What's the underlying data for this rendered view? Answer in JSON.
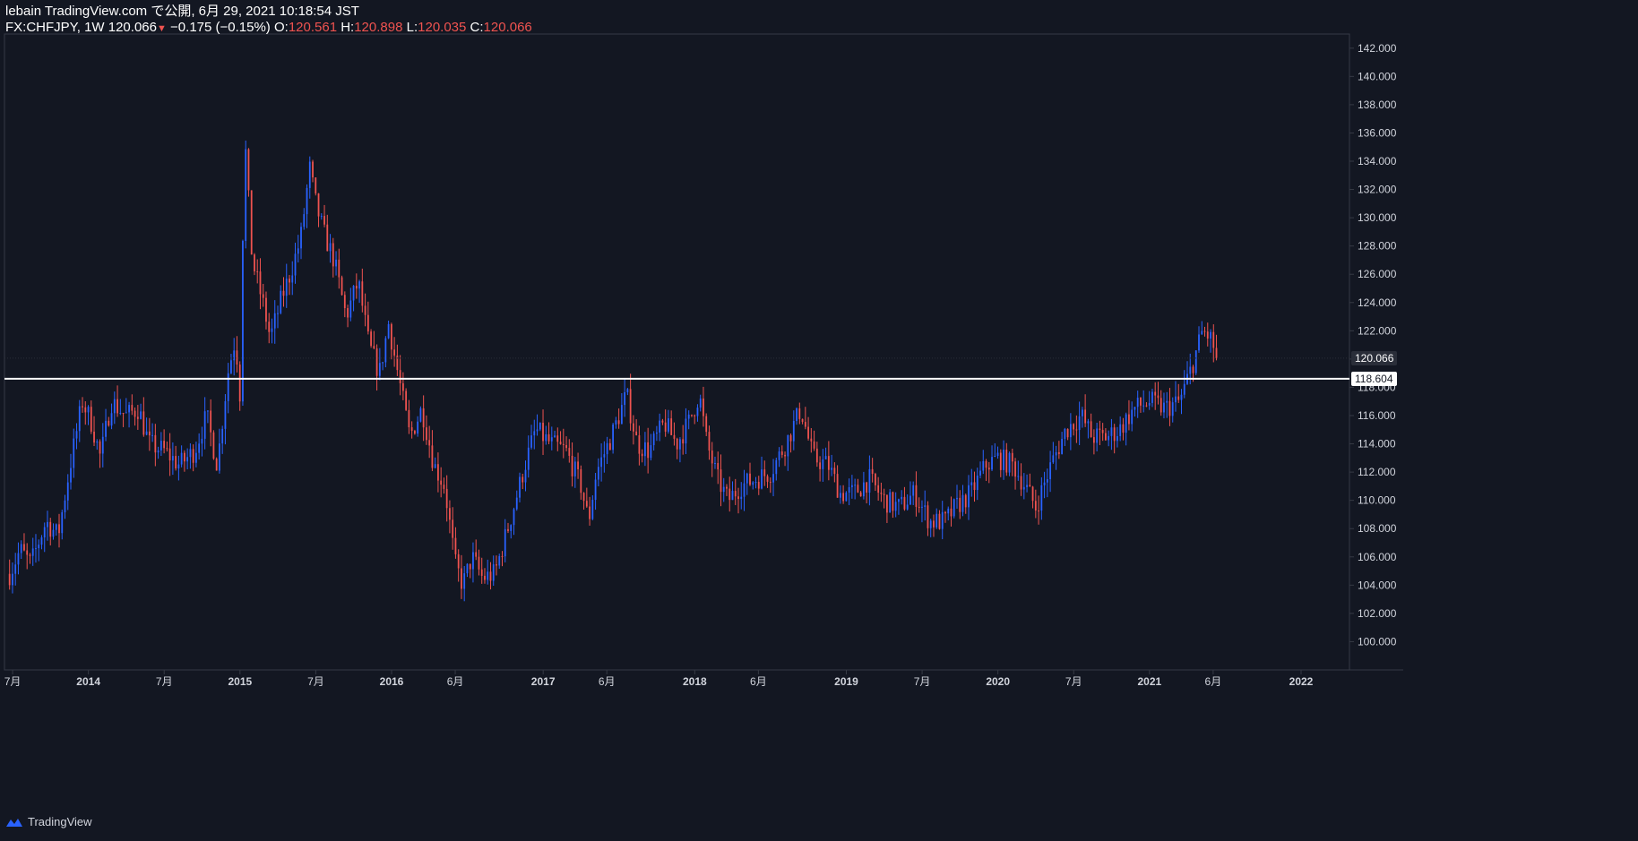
{
  "header": {
    "line1": "lebain TradingView.com で公開, 6月 29, 2021 10:18:54 JST",
    "symbol": "FX:CHFJPY, 1W",
    "last": "120.066",
    "change": "−0.175 (−0.15%)",
    "o_label": "O:",
    "o": "120.561",
    "h_label": "H:",
    "h": "120.898",
    "l_label": "L:",
    "l": "120.035",
    "c_label": "C:",
    "c": "120.066"
  },
  "footer": {
    "brand": "TradingView"
  },
  "colors": {
    "background": "#131722",
    "up": "#2962ff",
    "down": "#ef5350",
    "grid": "#1c2030",
    "axis": "#363a45",
    "line": "#ffffff"
  },
  "chart_data": {
    "type": "candlestick",
    "yaxis": {
      "min": 98,
      "max": 143,
      "ticks": [
        "100.000",
        "102.000",
        "104.000",
        "106.000",
        "108.000",
        "110.000",
        "112.000",
        "114.000",
        "116.000",
        "118.000",
        "120.000",
        "122.000",
        "124.000",
        "126.000",
        "128.000",
        "130.000",
        "132.000",
        "134.000",
        "136.000",
        "138.000",
        "140.000",
        "142.000"
      ]
    },
    "xaxis": {
      "ticks": [
        {
          "label": "7月",
          "t": 2013.5
        },
        {
          "label": "2014",
          "t": 2014.0
        },
        {
          "label": "7月",
          "t": 2014.5
        },
        {
          "label": "2015",
          "t": 2015.0
        },
        {
          "label": "7月",
          "t": 2015.5
        },
        {
          "label": "2016",
          "t": 2016.0
        },
        {
          "label": "6月",
          "t": 2016.42
        },
        {
          "label": "2017",
          "t": 2017.0
        },
        {
          "label": "6月",
          "t": 2017.42
        },
        {
          "label": "2018",
          "t": 2018.0
        },
        {
          "label": "6月",
          "t": 2018.42
        },
        {
          "label": "2019",
          "t": 2019.0
        },
        {
          "label": "7月",
          "t": 2019.5
        },
        {
          "label": "2020",
          "t": 2020.0
        },
        {
          "label": "7月",
          "t": 2020.5
        },
        {
          "label": "2021",
          "t": 2021.0
        },
        {
          "label": "6月",
          "t": 2021.42
        },
        {
          "label": "2022",
          "t": 2022.0
        }
      ]
    },
    "horizontal_line": {
      "value": 118.604,
      "label": "118.604"
    },
    "last_price": {
      "value": 120.066,
      "label": "120.066"
    },
    "path": [
      [
        2013.48,
        104.8
      ],
      [
        2013.55,
        106.5
      ],
      [
        2013.62,
        105.5
      ],
      [
        2013.72,
        108.5
      ],
      [
        2013.8,
        107.5
      ],
      [
        2013.88,
        112.5
      ],
      [
        2013.96,
        117.0
      ],
      [
        2014.02,
        115.5
      ],
      [
        2014.08,
        113.0
      ],
      [
        2014.15,
        117.0
      ],
      [
        2014.25,
        116.0
      ],
      [
        2014.33,
        116.5
      ],
      [
        2014.4,
        114.0
      ],
      [
        2014.5,
        113.5
      ],
      [
        2014.6,
        112.5
      ],
      [
        2014.7,
        113.5
      ],
      [
        2014.78,
        116.0
      ],
      [
        2014.85,
        112.5
      ],
      [
        2014.92,
        119.0
      ],
      [
        2014.97,
        121.5
      ],
      [
        2015.0,
        117.5
      ],
      [
        2015.03,
        136.0
      ],
      [
        2015.08,
        127.0
      ],
      [
        2015.15,
        124.0
      ],
      [
        2015.2,
        121.5
      ],
      [
        2015.28,
        124.5
      ],
      [
        2015.33,
        126.0
      ],
      [
        2015.4,
        128.5
      ],
      [
        2015.46,
        133.5
      ],
      [
        2015.5,
        131.0
      ],
      [
        2015.55,
        129.0
      ],
      [
        2015.62,
        127.0
      ],
      [
        2015.7,
        123.0
      ],
      [
        2015.78,
        125.5
      ],
      [
        2015.85,
        121.0
      ],
      [
        2015.92,
        119.0
      ],
      [
        2015.98,
        122.5
      ],
      [
        2016.05,
        118.5
      ],
      [
        2016.12,
        114.5
      ],
      [
        2016.2,
        116.5
      ],
      [
        2016.28,
        112.5
      ],
      [
        2016.35,
        111.0
      ],
      [
        2016.42,
        105.5
      ],
      [
        2016.47,
        104.0
      ],
      [
        2016.53,
        106.0
      ],
      [
        2016.6,
        104.5
      ],
      [
        2016.68,
        104.8
      ],
      [
        2016.78,
        108.5
      ],
      [
        2016.88,
        112.5
      ],
      [
        2016.95,
        115.0
      ],
      [
        2017.05,
        114.0
      ],
      [
        2017.15,
        113.5
      ],
      [
        2017.25,
        111.0
      ],
      [
        2017.3,
        108.5
      ],
      [
        2017.35,
        112.0
      ],
      [
        2017.45,
        114.5
      ],
      [
        2017.55,
        117.5
      ],
      [
        2017.62,
        114.0
      ],
      [
        2017.7,
        113.5
      ],
      [
        2017.8,
        115.5
      ],
      [
        2017.88,
        114.0
      ],
      [
        2017.96,
        115.5
      ],
      [
        2018.03,
        117.5
      ],
      [
        2018.08,
        114.0
      ],
      [
        2018.15,
        111.5
      ],
      [
        2018.22,
        110.0
      ],
      [
        2018.3,
        111.0
      ],
      [
        2018.4,
        111.5
      ],
      [
        2018.5,
        112.0
      ],
      [
        2018.6,
        114.0
      ],
      [
        2018.7,
        116.5
      ],
      [
        2018.78,
        113.0
      ],
      [
        2018.88,
        112.5
      ],
      [
        2018.96,
        110.5
      ],
      [
        2019.05,
        110.5
      ],
      [
        2019.15,
        111.5
      ],
      [
        2019.25,
        110.0
      ],
      [
        2019.35,
        109.5
      ],
      [
        2019.45,
        110.5
      ],
      [
        2019.55,
        108.5
      ],
      [
        2019.65,
        108.5
      ],
      [
        2019.72,
        109.5
      ],
      [
        2019.82,
        110.5
      ],
      [
        2019.92,
        112.5
      ],
      [
        2020.0,
        113.0
      ],
      [
        2020.1,
        112.5
      ],
      [
        2020.18,
        111.0
      ],
      [
        2020.25,
        109.5
      ],
      [
        2020.35,
        112.5
      ],
      [
        2020.45,
        115.0
      ],
      [
        2020.55,
        116.0
      ],
      [
        2020.62,
        114.5
      ],
      [
        2020.72,
        114.5
      ],
      [
        2020.8,
        115.0
      ],
      [
        2020.9,
        116.5
      ],
      [
        2021.0,
        117.0
      ],
      [
        2021.1,
        116.5
      ],
      [
        2021.2,
        117.0
      ],
      [
        2021.28,
        119.5
      ],
      [
        2021.35,
        122.0
      ],
      [
        2021.4,
        121.5
      ],
      [
        2021.45,
        120.066
      ]
    ]
  }
}
